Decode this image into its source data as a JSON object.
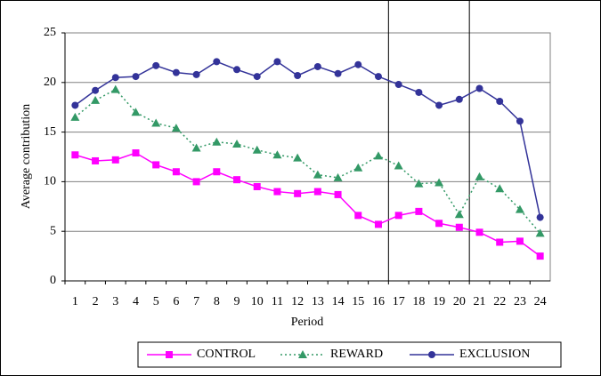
{
  "chart_data": {
    "type": "line",
    "y_label": "Average contribution",
    "x_label": "Period",
    "categories": [
      "1",
      "2",
      "3",
      "4",
      "5",
      "6",
      "7",
      "8",
      "9",
      "10",
      "11",
      "12",
      "13",
      "14",
      "15",
      "16",
      "17",
      "18",
      "19",
      "20",
      "21",
      "22",
      "23",
      "24"
    ],
    "ylim": [
      0,
      25
    ],
    "yticks": [
      0,
      5,
      10,
      15,
      20,
      25
    ],
    "grid": true,
    "series": [
      {
        "name": "CONTROL",
        "color": "#ff00ff",
        "marker": "square",
        "line_style": "solid",
        "values": [
          12.7,
          12.1,
          12.2,
          12.9,
          11.7,
          11.0,
          10.0,
          11.0,
          10.2,
          9.5,
          9.0,
          8.8,
          9.0,
          8.7,
          6.6,
          5.7,
          6.6,
          7.0,
          5.8,
          5.4,
          4.9,
          3.9,
          4.0,
          2.5
        ]
      },
      {
        "name": "REWARD",
        "color": "#339966",
        "marker": "triangle",
        "line_style": "dotted",
        "values": [
          16.5,
          18.2,
          19.3,
          17.0,
          15.9,
          15.4,
          13.4,
          14.0,
          13.8,
          13.2,
          12.7,
          12.4,
          10.7,
          10.4,
          11.4,
          12.6,
          11.6,
          9.8,
          9.9,
          6.7,
          10.5,
          9.3,
          7.2,
          4.8
        ]
      },
      {
        "name": "EXCLUSION",
        "color": "#333399",
        "marker": "circle",
        "line_style": "solid",
        "values": [
          17.7,
          19.2,
          20.5,
          20.6,
          21.7,
          21.0,
          20.8,
          22.1,
          21.3,
          20.6,
          22.1,
          20.7,
          21.6,
          20.9,
          21.8,
          20.6,
          19.8,
          19.0,
          17.7,
          18.3,
          19.4,
          18.1,
          16.1,
          6.4
        ]
      }
    ]
  }
}
